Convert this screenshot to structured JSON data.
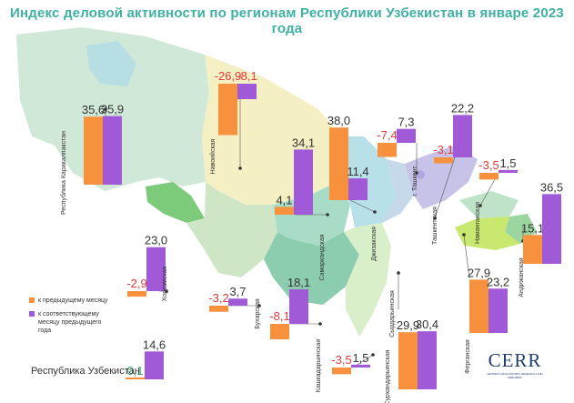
{
  "title": "Индекс деловой активности по регионам Республики Узбекистан в январе 2023 года",
  "colors": {
    "prev_month": "#f7913d",
    "prev_year": "#a05ad8",
    "negative_text": "#e23a3a",
    "positive_national": "#2aa36b",
    "title": "#3fb0a3"
  },
  "legend": {
    "prev_month": "к предыдущему месяцу",
    "prev_year": "к соответствующему месяцу предыдущего года"
  },
  "national": {
    "label": "Республика Узбекистан",
    "prev_month": 0.1,
    "prev_year": 14.6,
    "prev_month_text": "0,1",
    "prev_year_text": "14,6"
  },
  "logo": {
    "text": "CERR",
    "subtitle": "CENTER FOR ECONOMIC RESEARCH AND REFORMS"
  },
  "chart_data": {
    "type": "bar",
    "title": "Индекс деловой активности по регионам Республики Узбекистан в январе 2023 года",
    "series_names": [
      "к предыдущему месяцу",
      "к соответствующему месяцу предыдущего года"
    ],
    "regions": [
      {
        "name": "Республика Каракалпакстан",
        "prev_month": 35.6,
        "prev_year": 35.9,
        "prev_month_text": "35,6",
        "prev_year_text": "35,9"
      },
      {
        "name": "Навоийская",
        "prev_month": -26.9,
        "prev_year": -8.1,
        "prev_month_text": "-26,9",
        "prev_year_text": "-8,1"
      },
      {
        "name": "Хорезмская",
        "prev_month": -2.9,
        "prev_year": 23.0,
        "prev_month_text": "-2,9",
        "prev_year_text": "23,0"
      },
      {
        "name": "Самаркандская",
        "prev_month": 4.1,
        "prev_year": 34.1,
        "prev_month_text": "4,1",
        "prev_year_text": "34,1"
      },
      {
        "name": "Бухарская",
        "prev_month": -3.2,
        "prev_year": 3.7,
        "prev_month_text": "-3,2",
        "prev_year_text": "3,7"
      },
      {
        "name": "Кашкадарьинская",
        "prev_month": -8.1,
        "prev_year": 18.1,
        "prev_month_text": "-8,1",
        "prev_year_text": "18,1"
      },
      {
        "name": "Джизакская",
        "prev_month": 38.0,
        "prev_year": 11.4,
        "prev_month_text": "38,0",
        "prev_year_text": "11,4"
      },
      {
        "name": "Сурхандарьинская",
        "prev_month": -3.5,
        "prev_year": 1.5,
        "prev_month_text": "-3,5",
        "prev_year_text": "1,5"
      },
      {
        "name": "Сырдарьинская",
        "prev_month": 29.9,
        "prev_year": 30.4,
        "prev_month_text": "29,9",
        "prev_year_text": "30,4"
      },
      {
        "name": "г. Ташкент",
        "prev_month": -7.4,
        "prev_year": 7.3,
        "prev_month_text": "-7,4",
        "prev_year_text": "7,3"
      },
      {
        "name": "Ташкентская",
        "prev_month": -3.1,
        "prev_year": 22.2,
        "prev_month_text": "-3,1",
        "prev_year_text": "22,2"
      },
      {
        "name": "Наманганская",
        "prev_month": -3.5,
        "prev_year": 1.5,
        "prev_month_text": "-3,5",
        "prev_year_text": "1,5"
      },
      {
        "name": "Андижанская",
        "prev_month": 15.1,
        "prev_year": 36.5,
        "prev_month_text": "15,1",
        "prev_year_text": "36,5"
      },
      {
        "name": "Ферганская",
        "prev_month": 27.9,
        "prev_year": 23.2,
        "prev_month_text": "27,9",
        "prev_year_text": "23,2"
      }
    ]
  }
}
